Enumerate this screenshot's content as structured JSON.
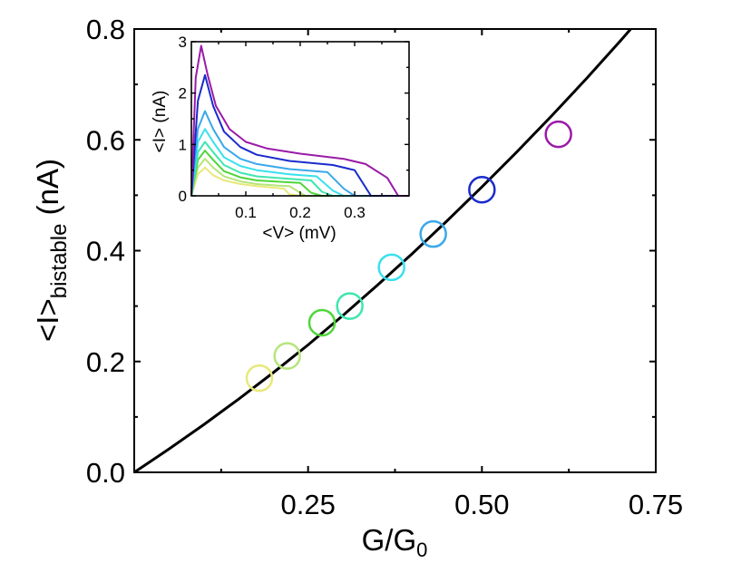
{
  "chart_data": [
    {
      "type": "scatter",
      "xlabel": "G/G",
      "xlabel_subscript": "0",
      "ylabel": "<I>",
      "ylabel_subscript": "bistable",
      "ylabel_unit": " (nA)",
      "xlim": [
        0.0,
        0.75
      ],
      "ylim": [
        0.0,
        0.8
      ],
      "x_ticks": [
        0.25,
        0.5,
        0.75
      ],
      "x_tick_labels": [
        "0.25",
        "0.50",
        "0.75"
      ],
      "y_ticks": [
        0.0,
        0.2,
        0.4,
        0.6,
        0.8
      ],
      "y_tick_labels": [
        "0.0",
        "0.2",
        "0.4",
        "0.6",
        "0.8"
      ],
      "points": [
        {
          "x": 0.18,
          "y": 0.17,
          "color": "#e8e87a"
        },
        {
          "x": 0.22,
          "y": 0.21,
          "color": "#b5e57a"
        },
        {
          "x": 0.27,
          "y": 0.27,
          "color": "#4fd63a"
        },
        {
          "x": 0.31,
          "y": 0.3,
          "color": "#3fe6b0"
        },
        {
          "x": 0.37,
          "y": 0.37,
          "color": "#3ae0ee"
        },
        {
          "x": 0.43,
          "y": 0.43,
          "color": "#3aa8ea"
        },
        {
          "x": 0.5,
          "y": 0.51,
          "color": "#1a2ccc"
        },
        {
          "x": 0.61,
          "y": 0.61,
          "color": "#9a1aa8"
        }
      ],
      "fit_line": {
        "color": "#000000",
        "x": [
          0.0,
          0.05,
          0.1,
          0.15,
          0.2,
          0.25,
          0.3,
          0.35,
          0.4,
          0.45,
          0.5,
          0.55,
          0.6,
          0.65,
          0.7,
          0.714
        ],
        "y": [
          0.0,
          0.042,
          0.086,
          0.132,
          0.18,
          0.23,
          0.283,
          0.338,
          0.395,
          0.454,
          0.515,
          0.578,
          0.643,
          0.71,
          0.78,
          0.8
        ]
      }
    },
    {
      "type": "line",
      "name": "inset",
      "xlabel": "<V> (mV)",
      "ylabel": "<I> (nA)",
      "xlim": [
        0.0,
        0.4
      ],
      "ylim": [
        0.0,
        3.0
      ],
      "x_ticks": [
        0.1,
        0.2,
        0.3
      ],
      "x_tick_labels": [
        "0.1",
        "0.2",
        "0.3"
      ],
      "y_ticks": [
        0,
        1,
        2,
        3
      ],
      "y_tick_labels": [
        "0",
        "1",
        "2",
        "3"
      ],
      "series": [
        {
          "color": "#e8e87a",
          "x": [
            0,
            0.012,
            0.025,
            0.04,
            0.06,
            0.09,
            0.12,
            0.15,
            0.17,
            0.18,
            0.2,
            0.4
          ],
          "y": [
            0,
            0.42,
            0.55,
            0.4,
            0.3,
            0.23,
            0.19,
            0.16,
            0.14,
            0.03,
            0,
            0
          ]
        },
        {
          "color": "#b5e57a",
          "x": [
            0,
            0.012,
            0.025,
            0.04,
            0.06,
            0.09,
            0.12,
            0.16,
            0.18,
            0.2,
            0.21,
            0.4
          ],
          "y": [
            0,
            0.55,
            0.72,
            0.55,
            0.38,
            0.28,
            0.23,
            0.2,
            0.19,
            0.06,
            0,
            0
          ]
        },
        {
          "color": "#4fd63a",
          "x": [
            0,
            0.012,
            0.025,
            0.04,
            0.06,
            0.09,
            0.12,
            0.17,
            0.2,
            0.22,
            0.24,
            0.4
          ],
          "y": [
            0,
            0.7,
            0.88,
            0.7,
            0.48,
            0.36,
            0.3,
            0.27,
            0.25,
            0.06,
            0,
            0
          ]
        },
        {
          "color": "#3fe6b0",
          "x": [
            0,
            0.012,
            0.025,
            0.04,
            0.06,
            0.09,
            0.12,
            0.18,
            0.22,
            0.24,
            0.26,
            0.4
          ],
          "y": [
            0,
            0.85,
            1.05,
            0.85,
            0.6,
            0.45,
            0.38,
            0.33,
            0.3,
            0.08,
            0,
            0
          ]
        },
        {
          "color": "#3ae0ee",
          "x": [
            0,
            0.012,
            0.025,
            0.04,
            0.06,
            0.09,
            0.12,
            0.18,
            0.23,
            0.26,
            0.28,
            0.4
          ],
          "y": [
            0,
            1.05,
            1.3,
            1.05,
            0.75,
            0.58,
            0.5,
            0.42,
            0.38,
            0.1,
            0,
            0
          ]
        },
        {
          "color": "#3aa8ea",
          "x": [
            0,
            0.012,
            0.025,
            0.04,
            0.06,
            0.09,
            0.12,
            0.18,
            0.25,
            0.28,
            0.3,
            0.4
          ],
          "y": [
            0,
            1.3,
            1.65,
            1.3,
            0.95,
            0.72,
            0.62,
            0.52,
            0.46,
            0.14,
            0,
            0
          ]
        },
        {
          "color": "#1a2ccc",
          "x": [
            0,
            0.012,
            0.025,
            0.04,
            0.06,
            0.09,
            0.12,
            0.18,
            0.26,
            0.3,
            0.33,
            0.4
          ],
          "y": [
            0,
            1.85,
            2.35,
            1.75,
            1.25,
            0.95,
            0.8,
            0.68,
            0.6,
            0.5,
            0,
            0
          ]
        },
        {
          "color": "#9a1aa8",
          "x": [
            0,
            0.008,
            0.018,
            0.03,
            0.045,
            0.07,
            0.1,
            0.14,
            0.2,
            0.28,
            0.32,
            0.36,
            0.38,
            0.4
          ],
          "y": [
            0,
            2.3,
            2.92,
            2.35,
            1.75,
            1.3,
            1.05,
            0.92,
            0.82,
            0.72,
            0.62,
            0.35,
            0,
            0
          ]
        }
      ]
    }
  ]
}
